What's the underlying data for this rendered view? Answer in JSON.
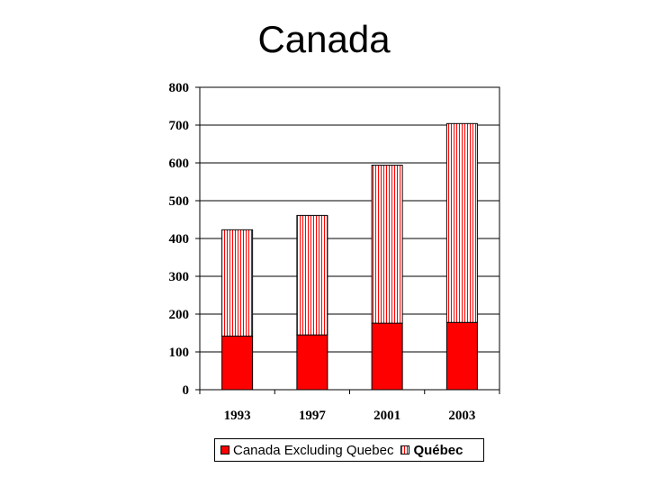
{
  "title": "Canada",
  "colors": {
    "base": "#ff0000",
    "hatch": "#ff0000",
    "grid": "#000000"
  },
  "chart_data": {
    "type": "bar",
    "stacked": true,
    "title": "Canada",
    "xlabel": "",
    "ylabel": "",
    "categories": [
      "1993",
      "1997",
      "2001",
      "2003"
    ],
    "series": [
      {
        "name": "Canada Excluding Quebec",
        "values": [
          142,
          145,
          176,
          178
        ],
        "fill": "solid-red"
      },
      {
        "name": "Québec",
        "values": [
          281,
          316,
          418,
          526
        ],
        "fill": "red-vertical-hatch"
      }
    ],
    "ylim": [
      0,
      800
    ],
    "yticks": [
      "0",
      "100",
      "200",
      "300",
      "400",
      "500",
      "600",
      "700",
      "800"
    ],
    "grid": true,
    "legend": "bottom"
  }
}
